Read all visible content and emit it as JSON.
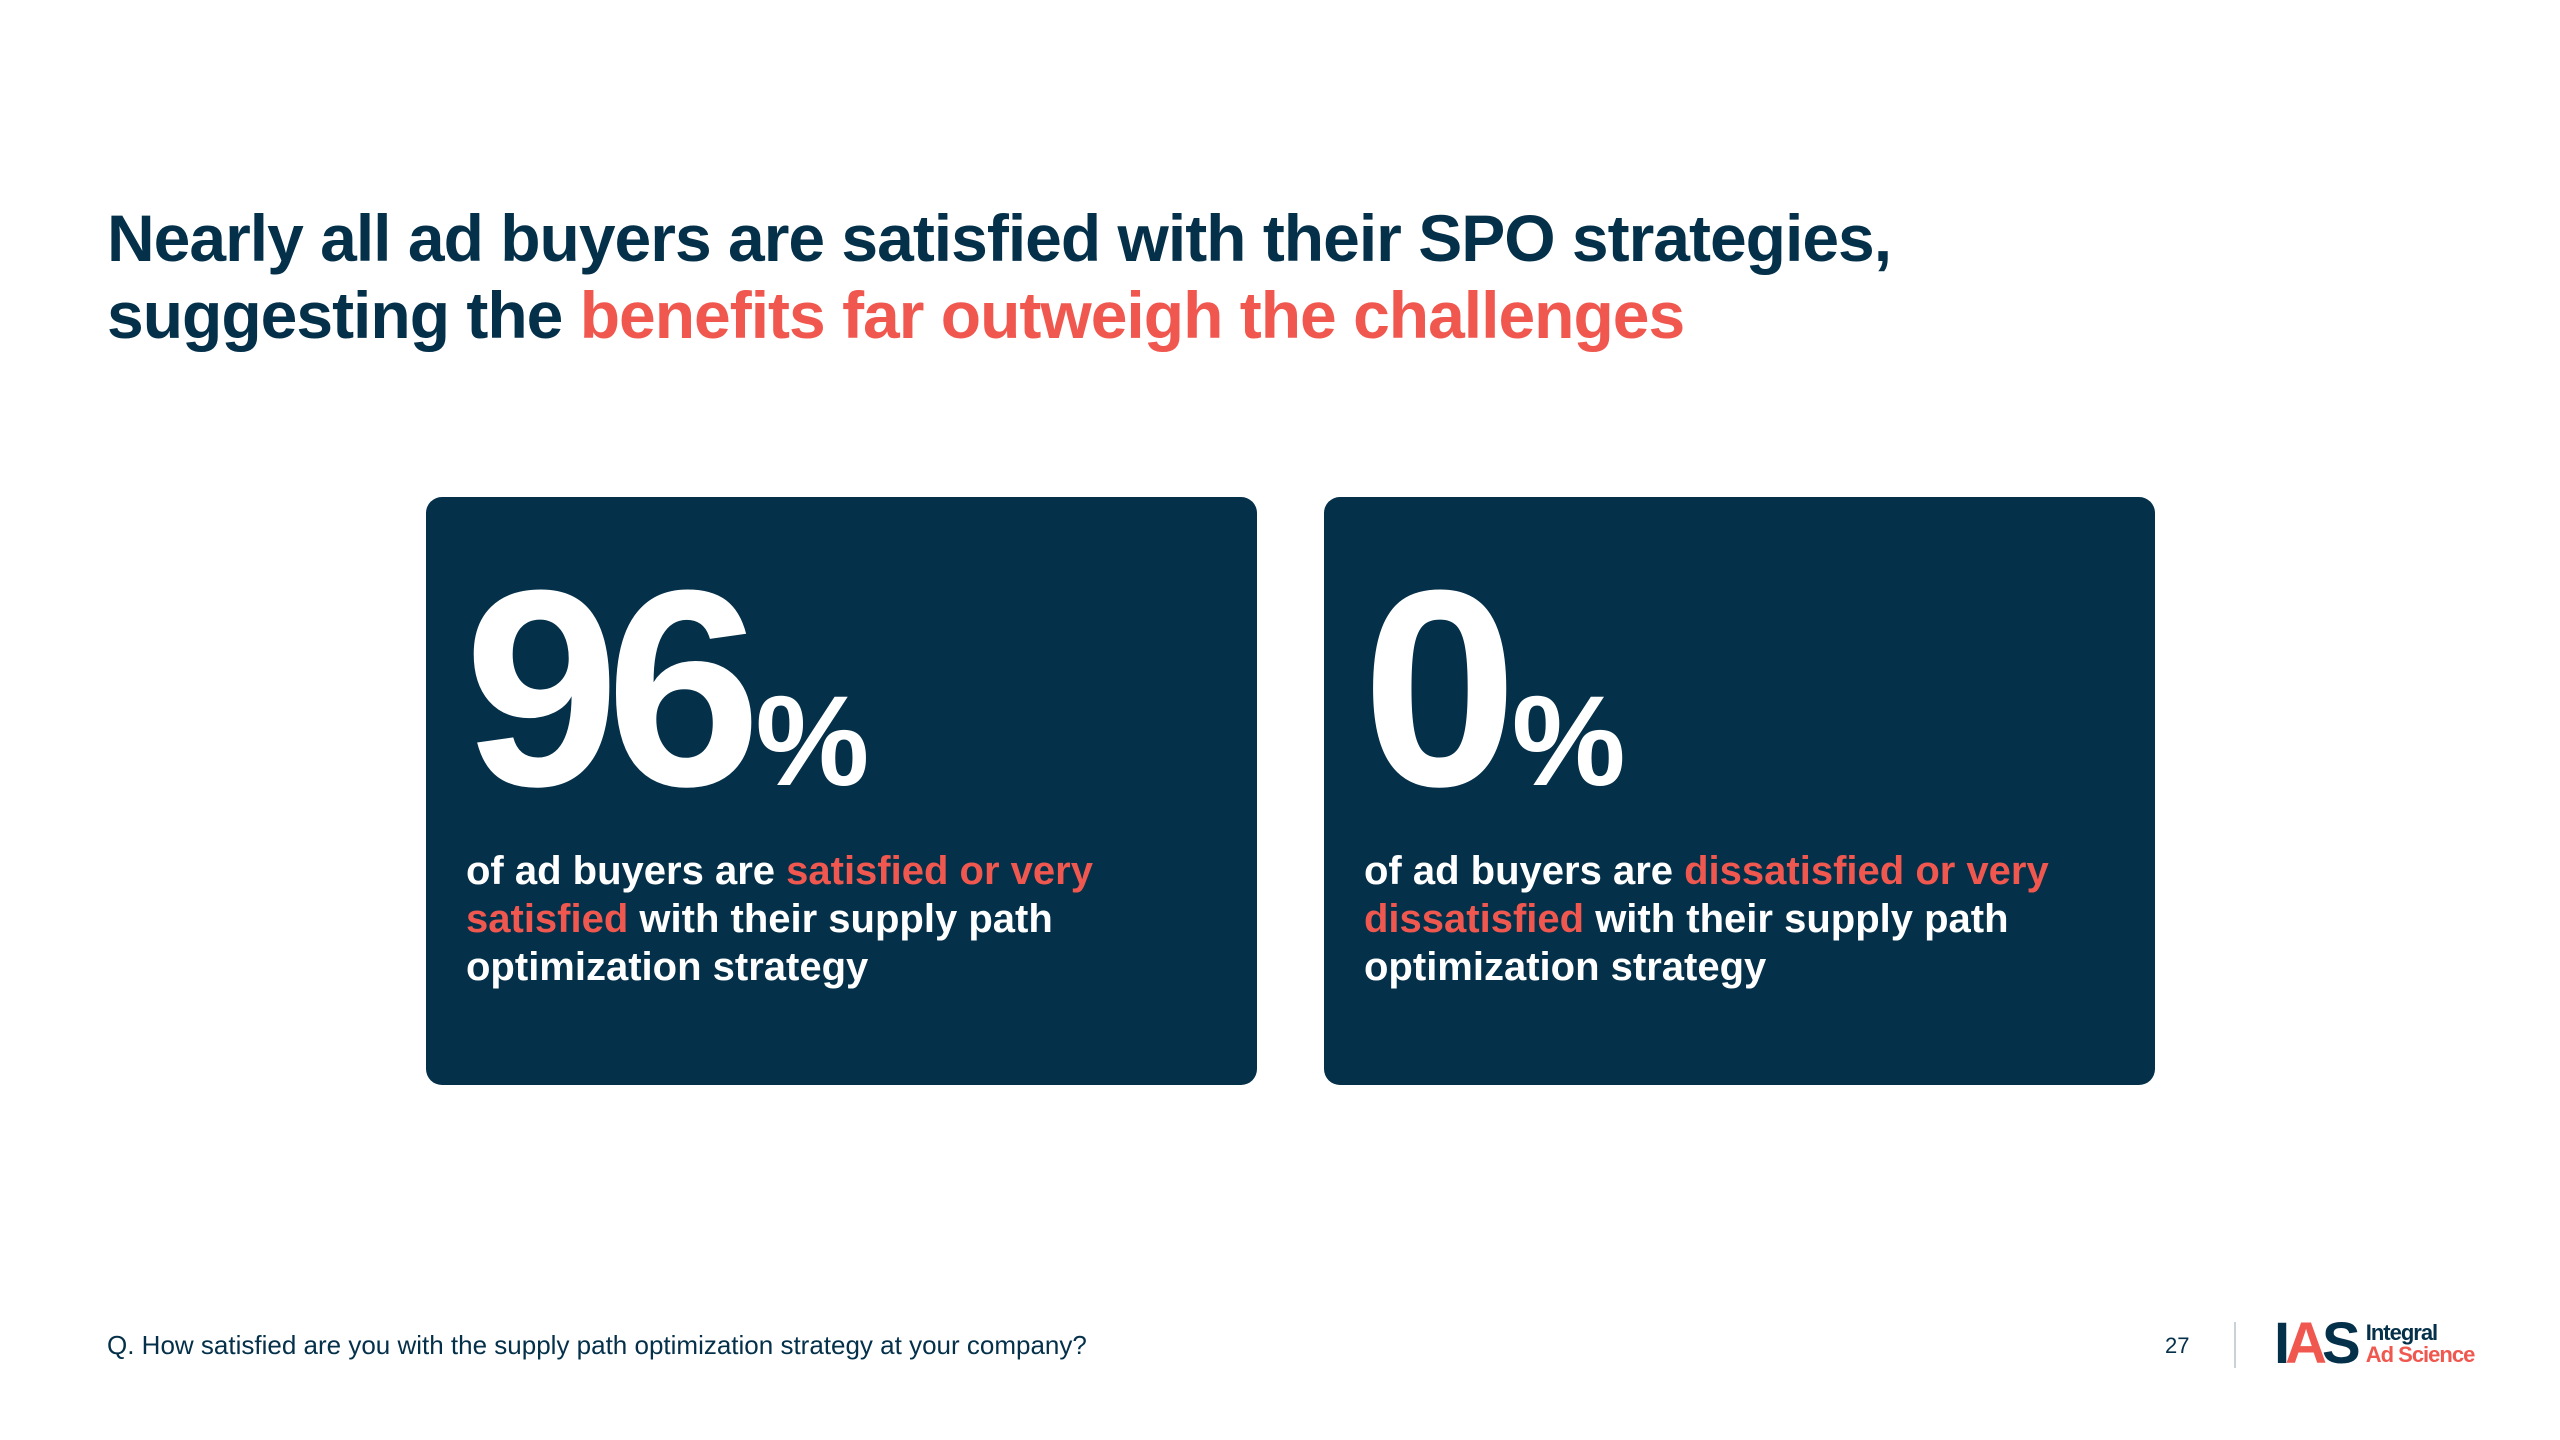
{
  "headline": {
    "part1": "Nearly all ad buyers are satisfied with their SPO strategies,",
    "part2": "suggesting the ",
    "accent": "benefits far outweigh the challenges"
  },
  "cards": [
    {
      "value": "96",
      "unit": "%",
      "desc_prefix": "of ad buyers are ",
      "desc_accent": "satisfied or very satisfied",
      "desc_suffix": " with their supply path optimization strategy"
    },
    {
      "value": "0",
      "unit": "%",
      "desc_prefix": "of ad buyers are ",
      "desc_accent": "dissatisfied or very dissatisfied",
      "desc_suffix": " with their supply path optimization strategy"
    }
  ],
  "footer": {
    "question": "Q. How satisfied are you with the supply path optimization strategy at your company?",
    "page_number": "27",
    "logo": {
      "mark": "IAS",
      "line1": "Integral",
      "line2": "Ad Science"
    }
  },
  "colors": {
    "navy": "#04304a",
    "accent": "#f0584f",
    "background": "#ffffff"
  }
}
